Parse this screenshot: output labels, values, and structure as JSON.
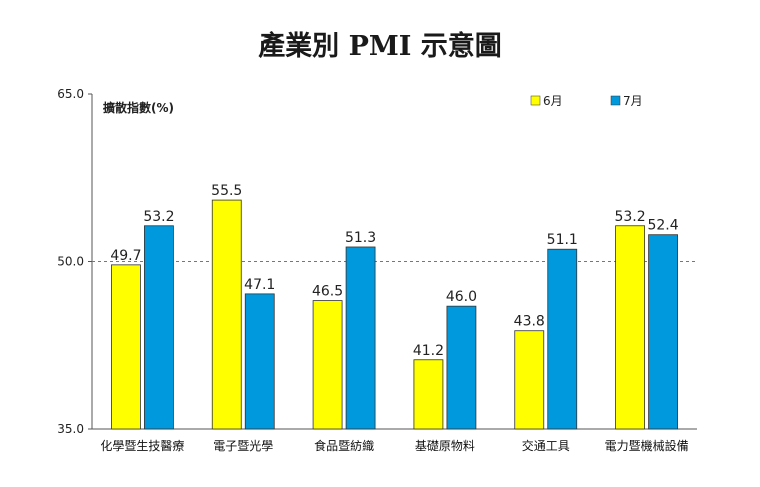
{
  "chart_data": {
    "type": "bar",
    "title": "產業別 PMI 示意圖",
    "ylabel": "擴散指數(%)",
    "xlabel": "",
    "ylim": [
      35.0,
      65.0
    ],
    "yticks": [
      "35.0",
      "50.0",
      "65.0"
    ],
    "reference_line": 50.0,
    "categories": [
      "化學暨生技醫療",
      "電子暨光學",
      "食品暨紡織",
      "基礎原物料",
      "交通工具",
      "電力暨機械設備"
    ],
    "series": [
      {
        "name": "6月",
        "color": "#ffff00",
        "values": [
          49.7,
          55.5,
          46.5,
          41.2,
          43.8,
          53.2
        ]
      },
      {
        "name": "7月",
        "color": "#0099dd",
        "values": [
          53.2,
          47.1,
          51.3,
          46.0,
          51.1,
          52.4
        ]
      }
    ],
    "legend_position": "top-right"
  }
}
